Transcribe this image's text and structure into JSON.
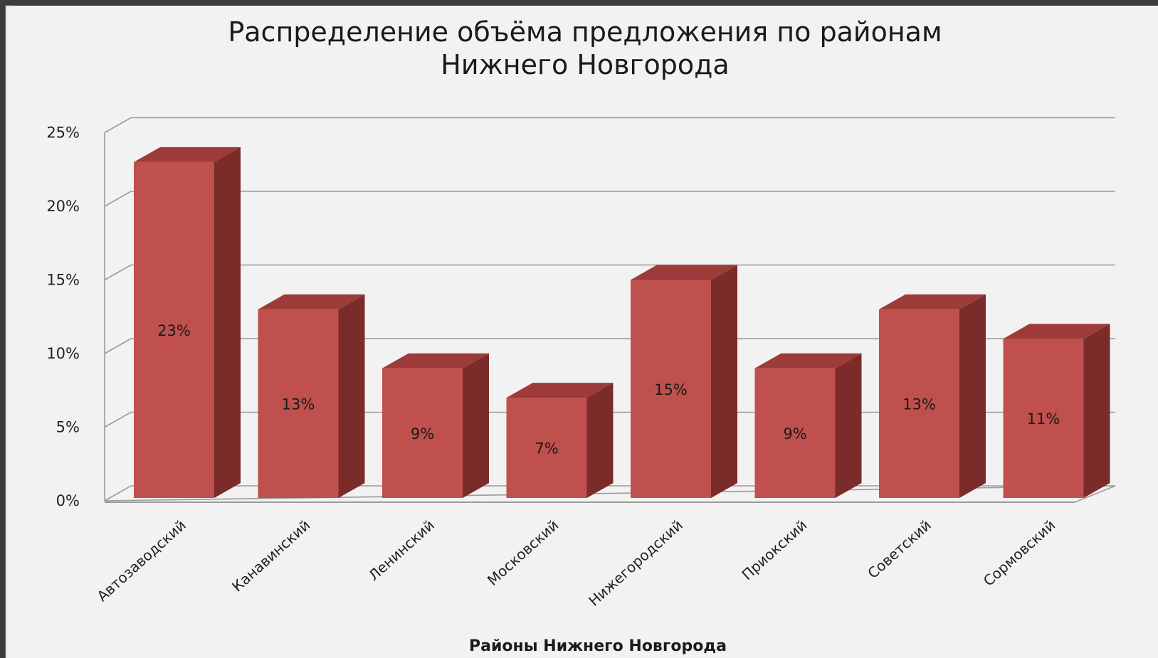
{
  "chart_data": {
    "type": "bar",
    "title_line1": "Распределение объёма предложения по районам",
    "title_line2": "Нижнего Новгорода",
    "xlabel": "Районы Нижнего Новгорода",
    "ylabel": "",
    "ylim": [
      0,
      25
    ],
    "yticks": [
      "0%",
      "5%",
      "10%",
      "15%",
      "20%",
      "25%"
    ],
    "categories": [
      "Автозаводский",
      "Канавинский",
      "Ленинский",
      "Московский",
      "Нижегородский",
      "Приокский",
      "Советский",
      "Сормовский"
    ],
    "values": [
      23,
      13,
      9,
      7,
      15,
      9,
      13,
      11
    ],
    "data_labels": [
      "23%",
      "13%",
      "9%",
      "7%",
      "15%",
      "9%",
      "13%",
      "11%"
    ],
    "grid": true,
    "legend": "none",
    "colors": {
      "bar_front": "#c0504d",
      "bar_side": "#7b2c2a",
      "bar_top": "#9c3b39",
      "background": "#f2f2f2",
      "frame": "#3c3c3c",
      "gridline": "#9a9a9a"
    }
  }
}
